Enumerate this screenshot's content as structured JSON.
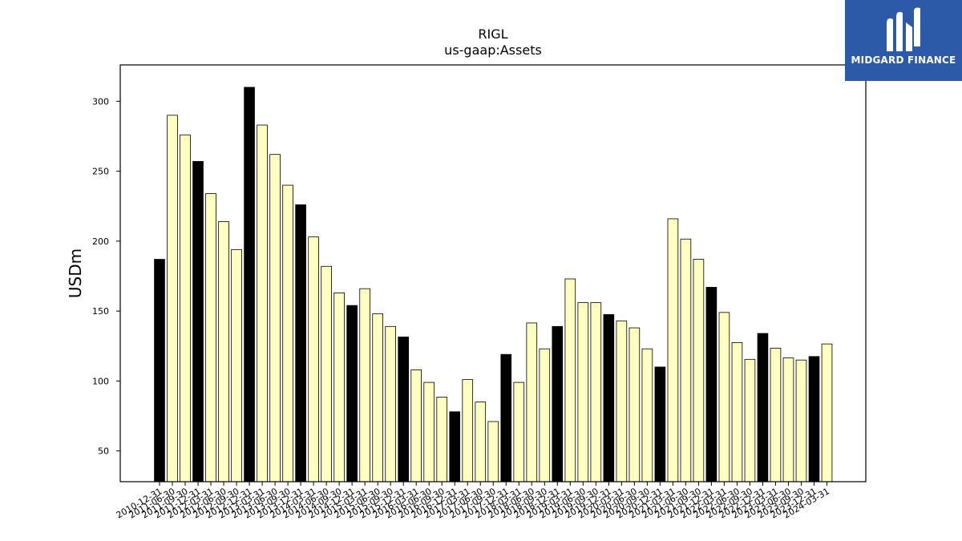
{
  "chart_data": {
    "type": "bar",
    "title": "RIGL",
    "subtitle": "us-gaap:Assets",
    "xlabel": "",
    "ylabel": "USDm",
    "ylim": [
      28,
      326
    ],
    "yticks": [
      50,
      100,
      150,
      200,
      250,
      300
    ],
    "grid": false,
    "colors": {
      "annual": "#000000",
      "quarterly": "#ffffc0",
      "edge": "#000000"
    },
    "categories": [
      "2010-12-31",
      "2011-06-30",
      "2011-09-30",
      "2011-12-31",
      "2012-03-31",
      "2012-06-30",
      "2012-09-30",
      "2012-12-31",
      "2013-03-31",
      "2013-06-30",
      "2013-09-30",
      "2013-12-31",
      "2014-03-31",
      "2014-06-30",
      "2014-09-30",
      "2014-12-31",
      "2015-03-31",
      "2015-06-30",
      "2015-09-30",
      "2015-12-31",
      "2016-03-31",
      "2016-06-30",
      "2016-09-30",
      "2016-12-31",
      "2017-03-31",
      "2017-06-30",
      "2017-09-30",
      "2017-12-31",
      "2018-03-31",
      "2018-06-30",
      "2018-09-30",
      "2018-12-31",
      "2019-03-31",
      "2019-06-30",
      "2019-09-30",
      "2019-12-31",
      "2020-03-31",
      "2020-06-30",
      "2020-09-30",
      "2020-12-31",
      "2021-03-31",
      "2021-06-30",
      "2021-09-30",
      "2021-12-31",
      "2022-03-31",
      "2022-06-30",
      "2022-09-30",
      "2022-12-31",
      "2023-03-31",
      "2023-06-30",
      "2023-09-30",
      "2023-12-31",
      "2024-03-31"
    ],
    "values": [
      187,
      290,
      276,
      257,
      234,
      214,
      194,
      310,
      283,
      262,
      240,
      226,
      203,
      182,
      163,
      154,
      166,
      148,
      139,
      131.5,
      108,
      99,
      88.5,
      78,
      101,
      85,
      71,
      119,
      99,
      141.5,
      123,
      139,
      173,
      156,
      156,
      147.5,
      143,
      138,
      123,
      110,
      216,
      201.5,
      187,
      167,
      149,
      127.5,
      115.5,
      134,
      123.5,
      116.5,
      115,
      117.5,
      126.5
    ],
    "annual": [
      true,
      false,
      false,
      true,
      false,
      false,
      false,
      true,
      false,
      false,
      false,
      true,
      false,
      false,
      false,
      true,
      false,
      false,
      false,
      true,
      false,
      false,
      false,
      true,
      false,
      false,
      false,
      true,
      false,
      false,
      false,
      true,
      false,
      false,
      false,
      true,
      false,
      false,
      false,
      true,
      false,
      false,
      false,
      true,
      false,
      false,
      false,
      true,
      false,
      false,
      false,
      true,
      false
    ]
  },
  "brand": {
    "name": "MIDGARD FINANCE",
    "color": "#2d5aa8"
  }
}
